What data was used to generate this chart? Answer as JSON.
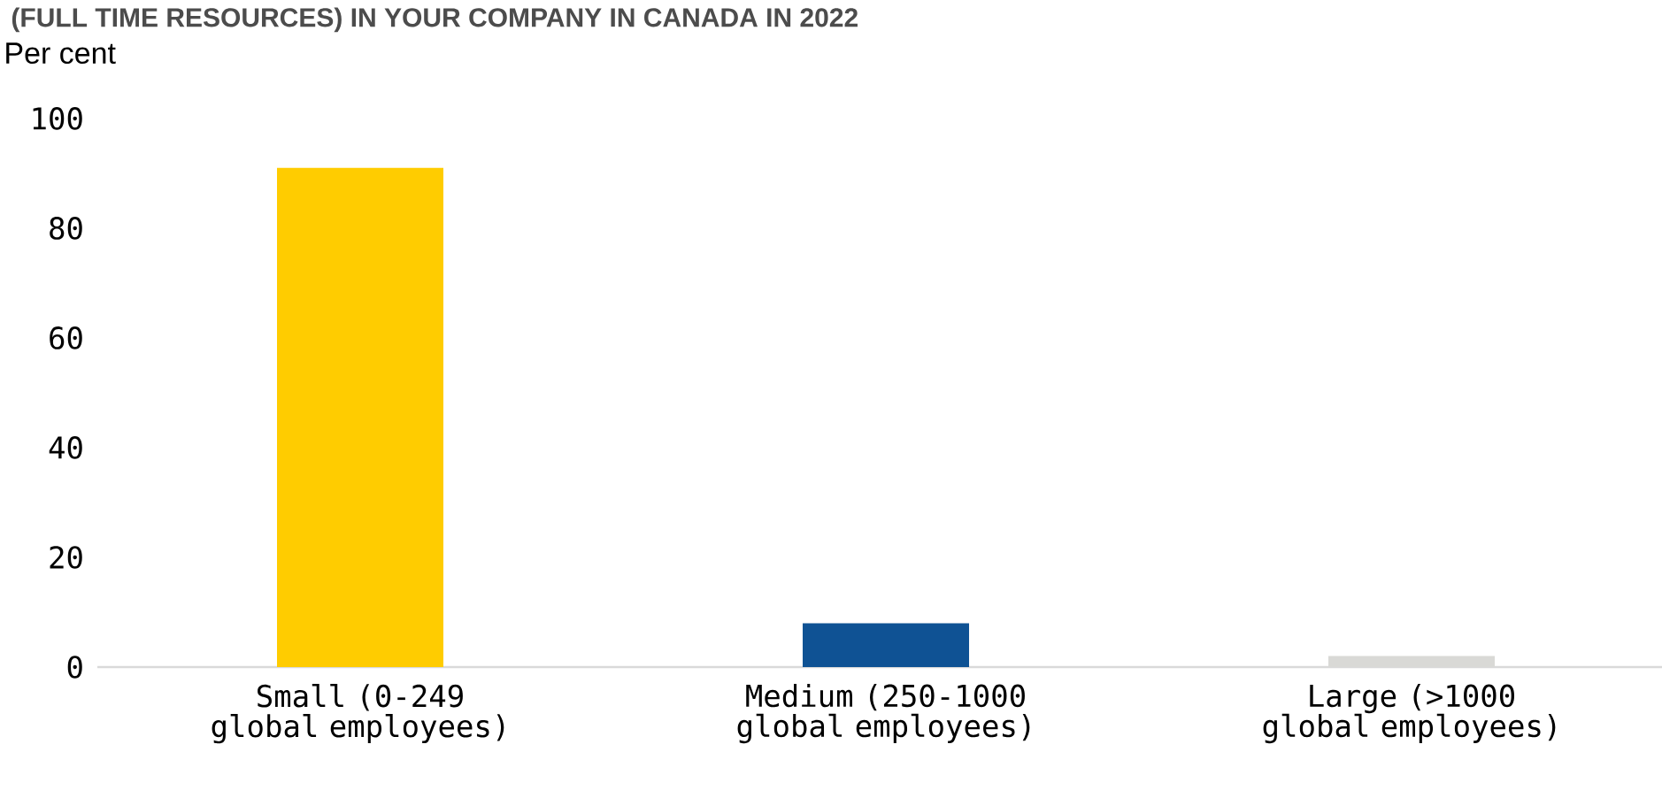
{
  "chart_data": {
    "type": "bar",
    "title": "(FULL TIME RESOURCES) IN YOUR COMPANY IN CANADA IN 2022",
    "ylabel": "Per cent",
    "categories": [
      "Small (0-249 global employees)",
      "Medium (250-1000 global employees)",
      "Large (>1000 global employees)"
    ],
    "values": [
      91,
      8,
      2
    ],
    "colors": [
      "#ffcc00",
      "#0f5294",
      "#d9d9d6"
    ],
    "ylim": [
      0,
      100
    ],
    "yticks": [
      0,
      20,
      40,
      60,
      80,
      100
    ]
  }
}
